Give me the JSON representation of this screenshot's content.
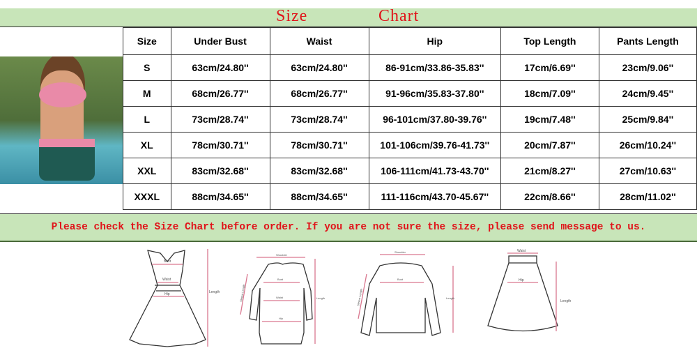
{
  "title": {
    "word1": "Size",
    "word2": "Chart"
  },
  "table": {
    "headers": [
      "Size",
      "Under Bust",
      "Waist",
      "Hip",
      "Top Length",
      "Pants Length"
    ],
    "rows": [
      [
        "S",
        "63cm/24.80''",
        "63cm/24.80''",
        "86-91cm/33.86-35.83''",
        "17cm/6.69''",
        "23cm/9.06''"
      ],
      [
        "M",
        "68cm/26.77''",
        "68cm/26.77''",
        "91-96cm/35.83-37.80''",
        "18cm/7.09''",
        "24cm/9.45''"
      ],
      [
        "L",
        "73cm/28.74''",
        "73cm/28.74''",
        "96-101cm/37.80-39.76''",
        "19cm/7.48''",
        "25cm/9.84''"
      ],
      [
        "XL",
        "78cm/30.71''",
        "78cm/30.71''",
        "101-106cm/39.76-41.73''",
        "20cm/7.87''",
        "26cm/10.24''"
      ],
      [
        "XXL",
        "83cm/32.68''",
        "83cm/32.68''",
        "106-111cm/41.73-43.70''",
        "21cm/8.27''",
        "27cm/10.63''"
      ],
      [
        "XXXL",
        "88cm/34.65''",
        "88cm/34.65''",
        "111-116cm/43.70-45.67''",
        "22cm/8.66''",
        "28cm/11.02''"
      ]
    ]
  },
  "notice": "Please check the Size Chart before order. If you are not sure the size, please send message to us.",
  "diagram_labels": {
    "bust": "Bust",
    "waist": "Waist",
    "hip": "Hip",
    "length": "Length",
    "shoulder": "Shoulder",
    "sleeve": "Sleeve Length"
  },
  "colors": {
    "band": "#c8e5b9",
    "title": "#e0141a",
    "measure": "#d9778f"
  }
}
